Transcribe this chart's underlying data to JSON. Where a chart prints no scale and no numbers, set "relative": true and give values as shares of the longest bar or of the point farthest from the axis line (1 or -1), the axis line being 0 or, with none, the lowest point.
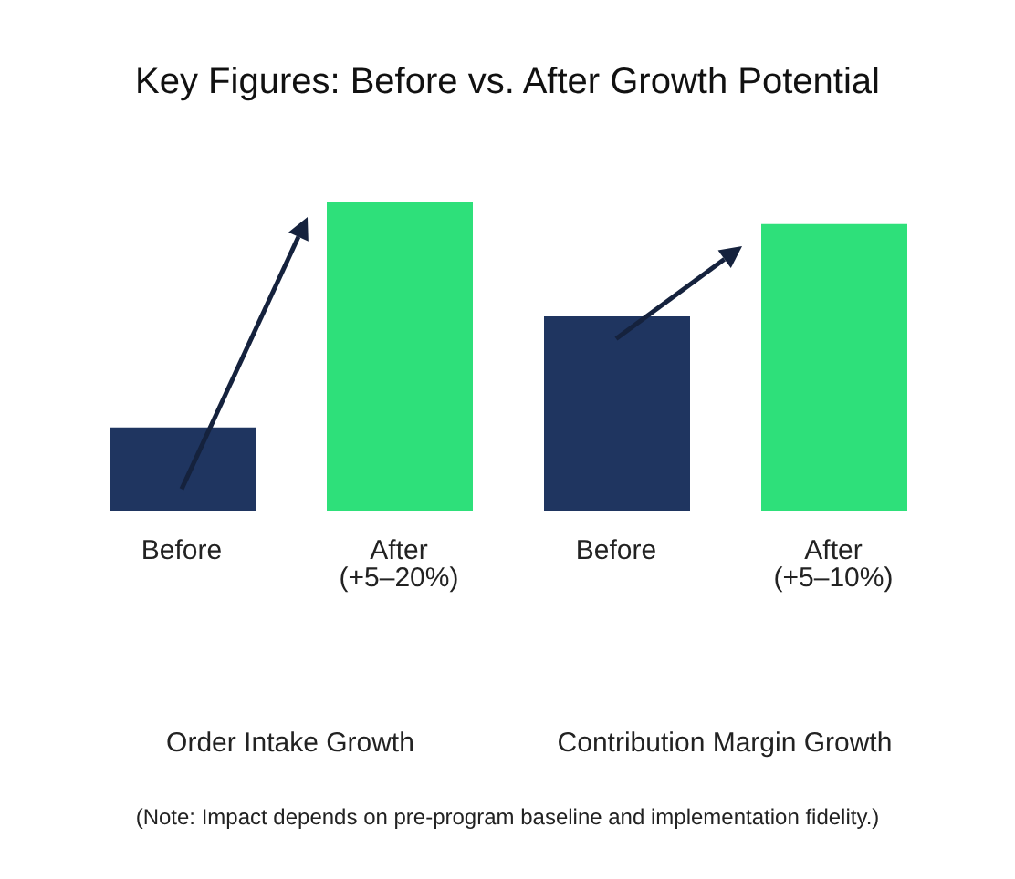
{
  "chart_data": {
    "type": "bar",
    "title": "Key Figures: Before vs. After Growth Potential",
    "relative": true,
    "categories": [
      "Before",
      "After (+5–20%)",
      "Before",
      "After (+5–10%)"
    ],
    "values": [
      0.27,
      1,
      0.63,
      0.93
    ],
    "colors": [
      "#1f3560",
      "#2ee07a",
      "#1f3560",
      "#2ee07a"
    ],
    "annotations": [
      "Order Intake Growth",
      "Contribution Margin Growth",
      "(Note: Impact depends on pre-program baseline and implementation fidelity.)"
    ]
  }
}
